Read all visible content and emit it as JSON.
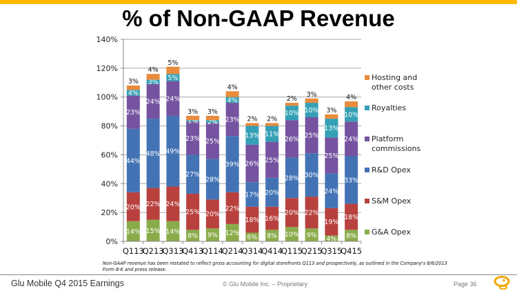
{
  "slide": {
    "title": "% of Non-GAAP Revenue",
    "footnote_line1": "Non-GAAP revenue has been restated to reflect gross accounting for digital storefronts Q113 and prospectively, as outlined in the Company's 8/6/2013",
    "footnote_line2": "Form 8-K and press release.",
    "footer_left": "Glu Mobile Q4 2015 Earnings",
    "footer_center": "© Glu Mobile Inc. – Proprietary",
    "footer_page": "Page 36",
    "logo_icon": "glu-logo-icon",
    "accent_color": "#FFB900"
  },
  "chart_data": {
    "type": "bar",
    "stacked": true,
    "title": "% of Non-GAAP Revenue",
    "xlabel": "",
    "ylabel": "",
    "ylim": [
      0,
      140
    ],
    "yticks": [
      0,
      20,
      40,
      60,
      80,
      100,
      120,
      140
    ],
    "ytick_labels": [
      "0%",
      "20%",
      "40%",
      "60%",
      "80%",
      "100%",
      "120%",
      "140%"
    ],
    "grid": true,
    "legend_position": "right",
    "categories": [
      "Q113",
      "Q213",
      "Q313",
      "Q413",
      "Q114",
      "Q214",
      "Q314",
      "Q414",
      "Q115",
      "Q215",
      "Q315",
      "Q415"
    ],
    "series": [
      {
        "name": "G&A Opex",
        "color": "#8AAB4A",
        "values": [
          14,
          15,
          14,
          8,
          9,
          12,
          6,
          8,
          10,
          9,
          4,
          8
        ]
      },
      {
        "name": "S&M Opex",
        "color": "#B8413E",
        "values": [
          20,
          22,
          24,
          25,
          20,
          22,
          18,
          16,
          20,
          22,
          19,
          18
        ]
      },
      {
        "name": "R&D Opex",
        "color": "#4373B4",
        "values": [
          44,
          48,
          49,
          27,
          28,
          39,
          17,
          20,
          28,
          30,
          24,
          33
        ]
      },
      {
        "name": "Platform commissions",
        "color": "#7553A0",
        "values": [
          23,
          24,
          24,
          23,
          25,
          23,
          26,
          25,
          26,
          25,
          25,
          24
        ]
      },
      {
        "name": "Royalties",
        "color": "#35A0B5",
        "values": [
          4,
          3,
          5,
          1,
          2,
          4,
          13,
          11,
          10,
          10,
          13,
          10
        ]
      },
      {
        "name": "Hosting and other costs",
        "color": "#E88B3C",
        "values": [
          3,
          4,
          5,
          3,
          3,
          4,
          2,
          2,
          2,
          3,
          3,
          4
        ]
      }
    ],
    "legend": [
      {
        "line1": "Hosting and",
        "line2": "other costs",
        "series": "Hosting and other costs"
      },
      {
        "line1": "Royalties",
        "line2": "",
        "series": "Royalties"
      },
      {
        "line1": "Platform",
        "line2": "commissions",
        "series": "Platform commissions"
      },
      {
        "line1": "R&D Opex",
        "line2": "",
        "series": "R&D Opex"
      },
      {
        "line1": "S&M Opex",
        "line2": "",
        "series": "S&M Opex"
      },
      {
        "line1": "G&A Opex",
        "line2": "",
        "series": "G&A Opex"
      }
    ],
    "label_format": "{v}%"
  }
}
